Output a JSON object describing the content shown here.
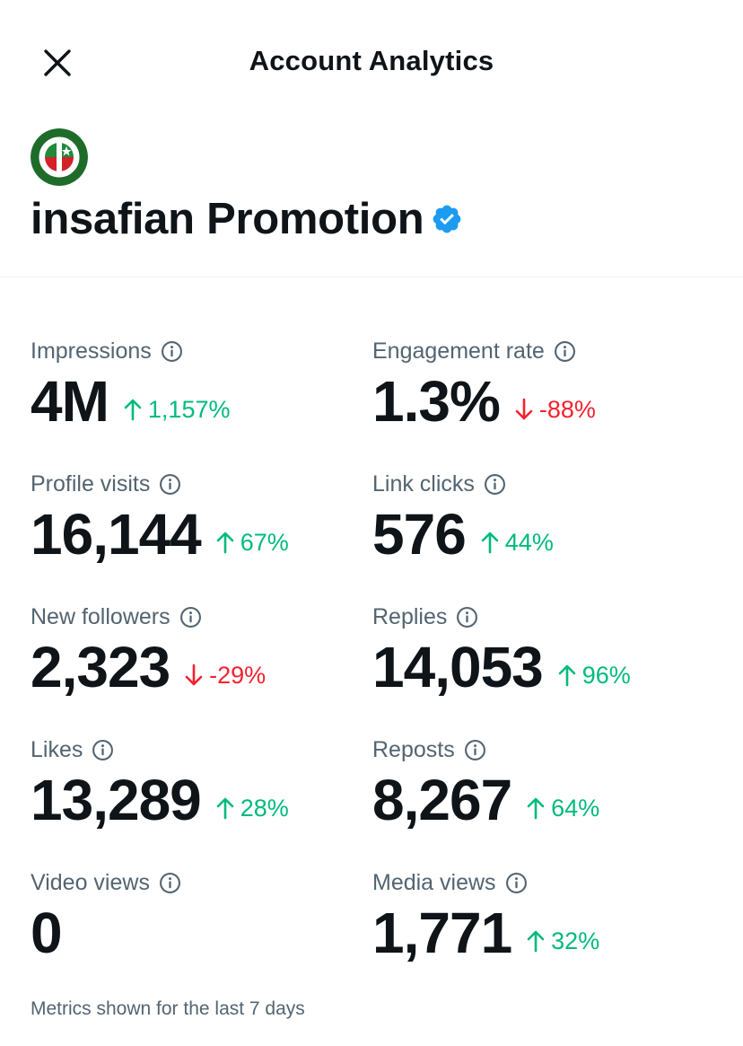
{
  "header": {
    "title": "Account Analytics"
  },
  "account": {
    "name": "insafian Promotion",
    "verified": true
  },
  "metrics": [
    {
      "label": "Impressions",
      "value": "4M",
      "change": "1,157%",
      "direction": "up"
    },
    {
      "label": "Engagement rate",
      "value": "1.3%",
      "change": "-88%",
      "direction": "down"
    },
    {
      "label": "Profile visits",
      "value": "16,144",
      "change": "67%",
      "direction": "up"
    },
    {
      "label": "Link clicks",
      "value": "576",
      "change": "44%",
      "direction": "up"
    },
    {
      "label": "New followers",
      "value": "2,323",
      "change": "-29%",
      "direction": "down"
    },
    {
      "label": "Replies",
      "value": "14,053",
      "change": "96%",
      "direction": "up"
    },
    {
      "label": "Likes",
      "value": "13,289",
      "change": "28%",
      "direction": "up"
    },
    {
      "label": "Reposts",
      "value": "8,267",
      "change": "64%",
      "direction": "up"
    },
    {
      "label": "Video views",
      "value": "0",
      "change": "",
      "direction": ""
    },
    {
      "label": "Media views",
      "value": "1,771",
      "change": "32%",
      "direction": "up"
    }
  ],
  "footer": {
    "note": "Metrics shown for the last 7 days"
  },
  "colors": {
    "up": "#00ba7c",
    "down": "#f4212e",
    "verified": "#1d9bf0",
    "muted": "#536471"
  },
  "icons": {
    "close": "close-icon",
    "info": "info-icon",
    "verified": "verified-badge-icon",
    "up": "arrow-up-icon",
    "down": "arrow-down-icon"
  }
}
